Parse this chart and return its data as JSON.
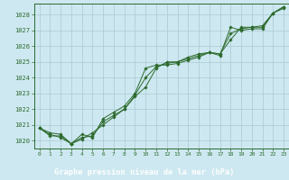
{
  "title": "Graphe pression niveau de la mer (hPa)",
  "bg_color": "#cde8f0",
  "plot_bg_color": "#cde8f0",
  "grid_color": "#b0cdd8",
  "line_color": "#2d6a2d",
  "title_bg": "#2d6a2d",
  "title_fg": "#ffffff",
  "xlim": [
    -0.5,
    23.5
  ],
  "ylim": [
    1019.5,
    1028.7
  ],
  "yticks": [
    1020,
    1021,
    1022,
    1023,
    1024,
    1025,
    1026,
    1027,
    1028
  ],
  "xticks": [
    0,
    1,
    2,
    3,
    4,
    5,
    6,
    7,
    8,
    9,
    10,
    11,
    12,
    13,
    14,
    15,
    16,
    17,
    18,
    19,
    20,
    21,
    22,
    23
  ],
  "series": [
    [
      1020.8,
      1020.5,
      1020.4,
      1019.8,
      1020.4,
      1020.2,
      1021.4,
      1021.8,
      1022.2,
      1023.0,
      1024.6,
      1024.8,
      1024.8,
      1024.9,
      1025.1,
      1025.3,
      1025.6,
      1025.4,
      1027.2,
      1027.0,
      1027.1,
      1027.1,
      1028.1,
      1028.4
    ],
    [
      1020.8,
      1020.3,
      1020.3,
      1019.8,
      1020.1,
      1020.5,
      1021.0,
      1021.5,
      1022.0,
      1022.8,
      1023.4,
      1024.6,
      1025.0,
      1025.0,
      1025.3,
      1025.5,
      1025.6,
      1025.5,
      1026.4,
      1027.2,
      1027.2,
      1027.3,
      1028.1,
      1028.5
    ],
    [
      1020.8,
      1020.4,
      1020.2,
      1019.8,
      1020.2,
      1020.3,
      1021.2,
      1021.6,
      1022.0,
      1022.9,
      1024.0,
      1024.7,
      1024.9,
      1025.0,
      1025.2,
      1025.4,
      1025.6,
      1025.5,
      1026.8,
      1027.1,
      1027.2,
      1027.2,
      1028.1,
      1028.5
    ]
  ]
}
